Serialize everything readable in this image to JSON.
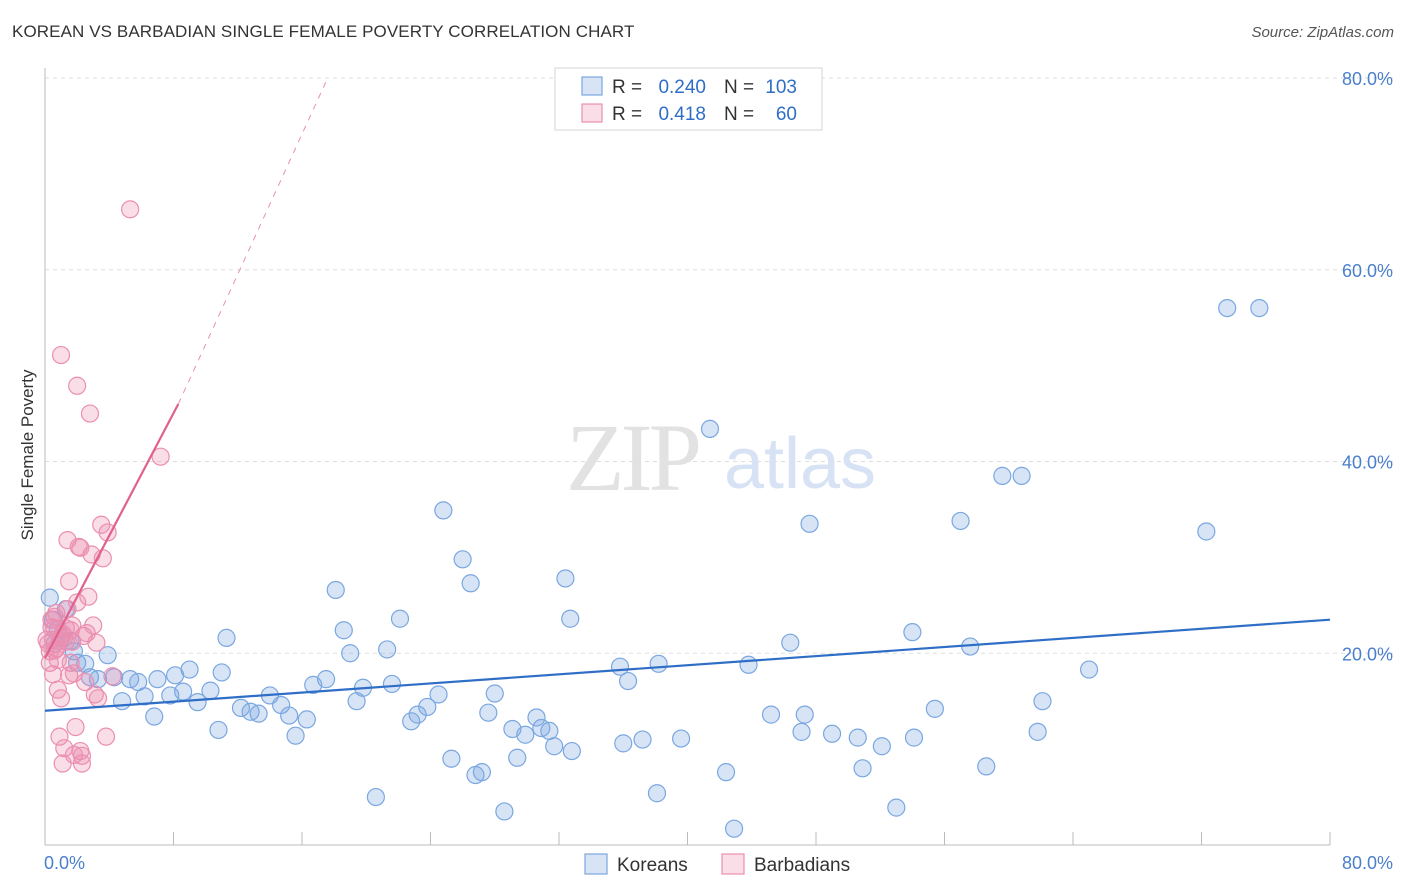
{
  "title": "KOREAN VS BARBADIAN SINGLE FEMALE POVERTY CORRELATION CHART",
  "source": "Source: ZipAtlas.com",
  "colors": {
    "korean": "#7aa7e0",
    "korean_fill": "rgba(122,167,224,0.30)",
    "korean_line": "#2f6ec6",
    "barbadian": "#eb8fb0",
    "barbadian_fill": "rgba(235,143,176,0.30)",
    "barbadian_line": "#e0608e",
    "tick_text": "#4a7fcb",
    "grid": "#dddddd"
  },
  "legend": {
    "r_label": "R =",
    "n_label": "N =",
    "korean_r": "0.240",
    "korean_n": "103",
    "barbadian_r": "0.418",
    "barbadian_n": "60"
  },
  "watermark": {
    "zip": "ZIP",
    "atlas": "atlas"
  },
  "chart_data": {
    "type": "scatter",
    "title": "KOREAN VS BARBADIAN SINGLE FEMALE POVERTY CORRELATION CHART",
    "xlabel": "",
    "ylabel": "Single Female Poverty",
    "xlim": [
      0,
      80
    ],
    "ylim": [
      0,
      80
    ],
    "x_tick_labels": [
      "0.0%",
      "80.0%"
    ],
    "y_ticks": [
      20,
      40,
      60,
      80
    ],
    "y_tick_labels": [
      "20.0%",
      "40.0%",
      "60.0%",
      "80.0%"
    ],
    "legend_entries": [
      "Koreans",
      "Barbadians"
    ],
    "series": [
      {
        "name": "Koreans",
        "r": 0.24,
        "n": 103,
        "trend": {
          "x0": 0,
          "y0": 14.0,
          "x1": 80,
          "y1": 23.5
        },
        "points": [
          [
            0.3,
            25.8
          ],
          [
            0.5,
            23.5
          ],
          [
            0.6,
            21.0
          ],
          [
            0.8,
            22.5
          ],
          [
            1.0,
            21.6
          ],
          [
            1.3,
            24.6
          ],
          [
            1.6,
            21.3
          ],
          [
            1.8,
            20.2
          ],
          [
            2.0,
            19.0
          ],
          [
            2.5,
            18.9
          ],
          [
            2.8,
            17.5
          ],
          [
            3.3,
            17.3
          ],
          [
            3.9,
            19.8
          ],
          [
            4.3,
            17.5
          ],
          [
            4.8,
            15.0
          ],
          [
            5.3,
            17.3
          ],
          [
            5.8,
            17.0
          ],
          [
            6.2,
            15.5
          ],
          [
            6.8,
            13.4
          ],
          [
            7.0,
            17.3
          ],
          [
            7.8,
            15.6
          ],
          [
            8.1,
            17.7
          ],
          [
            8.6,
            16.0
          ],
          [
            9.0,
            18.3
          ],
          [
            9.5,
            14.9
          ],
          [
            10.3,
            16.1
          ],
          [
            10.8,
            12.0
          ],
          [
            11.0,
            18.0
          ],
          [
            11.3,
            21.6
          ],
          [
            12.2,
            14.3
          ],
          [
            12.8,
            13.9
          ],
          [
            13.3,
            13.7
          ],
          [
            14.0,
            15.6
          ],
          [
            14.7,
            14.6
          ],
          [
            15.2,
            13.5
          ],
          [
            15.6,
            11.4
          ],
          [
            16.3,
            13.1
          ],
          [
            16.7,
            16.7
          ],
          [
            17.5,
            17.3
          ],
          [
            18.1,
            26.6
          ],
          [
            18.6,
            22.4
          ],
          [
            19.0,
            20.0
          ],
          [
            19.4,
            15.0
          ],
          [
            19.8,
            16.4
          ],
          [
            20.6,
            5.0
          ],
          [
            21.3,
            20.4
          ],
          [
            21.6,
            16.8
          ],
          [
            22.1,
            23.6
          ],
          [
            22.8,
            12.9
          ],
          [
            23.2,
            13.6
          ],
          [
            23.8,
            14.4
          ],
          [
            24.5,
            15.7
          ],
          [
            24.8,
            34.9
          ],
          [
            25.3,
            9.0
          ],
          [
            26.0,
            29.8
          ],
          [
            26.5,
            27.3
          ],
          [
            26.8,
            7.3
          ],
          [
            27.2,
            7.6
          ],
          [
            27.6,
            13.8
          ],
          [
            28.0,
            15.8
          ],
          [
            28.6,
            3.5
          ],
          [
            29.1,
            12.1
          ],
          [
            29.4,
            9.1
          ],
          [
            29.9,
            11.5
          ],
          [
            30.6,
            13.3
          ],
          [
            30.9,
            12.2
          ],
          [
            31.4,
            11.9
          ],
          [
            31.7,
            10.3
          ],
          [
            32.4,
            27.8
          ],
          [
            32.7,
            23.6
          ],
          [
            32.8,
            9.8
          ],
          [
            35.8,
            18.6
          ],
          [
            36.0,
            10.6
          ],
          [
            36.3,
            17.1
          ],
          [
            37.2,
            11.0
          ],
          [
            38.1,
            5.4
          ],
          [
            38.2,
            18.9
          ],
          [
            39.6,
            11.1
          ],
          [
            41.4,
            43.4
          ],
          [
            42.4,
            7.6
          ],
          [
            42.9,
            1.7
          ],
          [
            43.8,
            18.8
          ],
          [
            45.2,
            13.6
          ],
          [
            46.4,
            21.1
          ],
          [
            47.1,
            11.8
          ],
          [
            47.3,
            13.6
          ],
          [
            47.6,
            33.5
          ],
          [
            49.0,
            11.6
          ],
          [
            50.6,
            11.2
          ],
          [
            50.9,
            8.0
          ],
          [
            52.1,
            10.3
          ],
          [
            53.0,
            3.9
          ],
          [
            54.0,
            22.2
          ],
          [
            54.1,
            11.2
          ],
          [
            55.4,
            14.2
          ],
          [
            57.0,
            33.8
          ],
          [
            57.6,
            20.7
          ],
          [
            58.6,
            8.2
          ],
          [
            59.6,
            38.5
          ],
          [
            60.8,
            38.5
          ],
          [
            61.8,
            11.8
          ],
          [
            62.1,
            15.0
          ],
          [
            65.0,
            18.3
          ],
          [
            72.3,
            32.7
          ],
          [
            73.6,
            56.0
          ],
          [
            75.6,
            56.0
          ]
        ]
      },
      {
        "name": "Barbadians",
        "r": 0.418,
        "n": 60,
        "trend": {
          "x0": 0,
          "y0": 19.5,
          "x1": 8.3,
          "y1": 46.0
        },
        "trend_dashed": {
          "x0": 8.3,
          "y0": 46.0,
          "x1": 17.6,
          "y1": 80.0
        },
        "points": [
          [
            0.1,
            21.4
          ],
          [
            0.2,
            21.0
          ],
          [
            0.3,
            20.2
          ],
          [
            0.3,
            19.0
          ],
          [
            0.4,
            23.5
          ],
          [
            0.4,
            22.7
          ],
          [
            0.5,
            21.4
          ],
          [
            0.5,
            17.8
          ],
          [
            0.6,
            22.6
          ],
          [
            0.6,
            20.3
          ],
          [
            0.7,
            24.2
          ],
          [
            0.7,
            20.5
          ],
          [
            0.8,
            16.2
          ],
          [
            0.8,
            19.3
          ],
          [
            0.9,
            21.3
          ],
          [
            0.9,
            11.3
          ],
          [
            1.0,
            51.1
          ],
          [
            1.0,
            15.3
          ],
          [
            1.1,
            22.0
          ],
          [
            1.1,
            8.5
          ],
          [
            1.2,
            10.1
          ],
          [
            1.2,
            21.7
          ],
          [
            1.3,
            21.2
          ],
          [
            1.3,
            22.6
          ],
          [
            1.4,
            31.8
          ],
          [
            1.4,
            24.6
          ],
          [
            1.5,
            27.5
          ],
          [
            1.5,
            17.7
          ],
          [
            1.6,
            19.0
          ],
          [
            1.6,
            22.4
          ],
          [
            1.7,
            21.2
          ],
          [
            1.8,
            17.9
          ],
          [
            1.8,
            9.4
          ],
          [
            1.9,
            12.3
          ],
          [
            2.0,
            47.9
          ],
          [
            2.0,
            25.3
          ],
          [
            2.1,
            31.1
          ],
          [
            2.2,
            31.0
          ],
          [
            2.2,
            9.8
          ],
          [
            2.3,
            9.3
          ],
          [
            2.3,
            8.5
          ],
          [
            2.4,
            21.8
          ],
          [
            2.5,
            17.0
          ],
          [
            2.6,
            22.1
          ],
          [
            2.7,
            25.9
          ],
          [
            2.8,
            45.0
          ],
          [
            2.9,
            30.3
          ],
          [
            3.0,
            22.9
          ],
          [
            3.1,
            15.7
          ],
          [
            3.2,
            21.1
          ],
          [
            3.3,
            15.3
          ],
          [
            3.5,
            33.4
          ],
          [
            3.6,
            29.9
          ],
          [
            3.8,
            11.3
          ],
          [
            3.9,
            32.6
          ],
          [
            4.2,
            17.6
          ],
          [
            5.3,
            66.3
          ],
          [
            7.2,
            40.5
          ],
          [
            0.6,
            23.8
          ],
          [
            1.7,
            22.9
          ]
        ]
      }
    ]
  }
}
